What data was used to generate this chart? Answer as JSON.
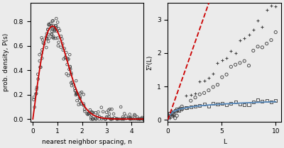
{
  "left_xlabel": "nearest neighbor spacing, n",
  "left_ylabel": "prob. density, P(s)",
  "left_xlim": [
    -0.1,
    4.5
  ],
  "left_ylim": [
    -0.02,
    0.95
  ],
  "left_xticks": [
    0,
    1,
    2,
    3,
    4
  ],
  "left_yticks": [
    0.0,
    0.2,
    0.4,
    0.6,
    0.8
  ],
  "right_xlabel": "L",
  "right_ylabel": "Σ²(L)",
  "right_xlim": [
    0,
    10.5
  ],
  "right_ylim": [
    -0.05,
    3.5
  ],
  "right_xticks": [
    0,
    5,
    10
  ],
  "right_yticks": [
    0,
    1,
    2,
    3
  ],
  "scatter_color": "#444444",
  "line_color_red": "#cc0000",
  "line_color_blue": "#5588bb",
  "background": "#ebebeb"
}
